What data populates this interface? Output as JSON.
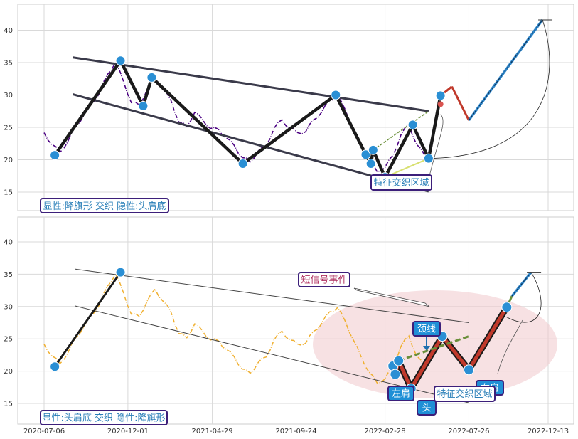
{
  "chart_data": [
    {
      "type": "line",
      "panel": "top",
      "ylim": [
        12,
        44
      ],
      "yticks": [
        15,
        20,
        25,
        30,
        35,
        40
      ],
      "grid": true,
      "price_color": "#4b0082",
      "series": [
        {
          "x": [
            "2020-07-06",
            "2020-07-20",
            "2020-08-03",
            "2020-08-17",
            "2020-08-31",
            "2020-09-14",
            "2020-09-28",
            "2020-10-12",
            "2020-10-26",
            "2020-11-09",
            "2020-11-23",
            "2020-12-07",
            "2020-12-21",
            "2021-01-04",
            "2021-01-18",
            "2021-02-01",
            "2021-02-15",
            "2021-03-01",
            "2021-03-15",
            "2021-03-29",
            "2021-04-12",
            "2021-04-26",
            "2021-05-10",
            "2021-05-24",
            "2021-06-07",
            "2021-06-21",
            "2021-07-05",
            "2021-07-19",
            "2021-08-02",
            "2021-08-16",
            "2021-08-30",
            "2021-09-13",
            "2021-09-27",
            "2021-10-11",
            "2021-10-25",
            "2021-11-08",
            "2021-11-22",
            "2021-12-06",
            "2021-12-20",
            "2022-01-03",
            "2022-01-17",
            "2022-01-31",
            "2022-02-14",
            "2022-02-28",
            "2022-03-14",
            "2022-03-28",
            "2022-04-11",
            "2022-04-25",
            "2022-05-09"
          ],
          "values": [
            24,
            22.5,
            21,
            23,
            25,
            27,
            28.5,
            30.5,
            33,
            35.2,
            32,
            29,
            28.3,
            31,
            32.5,
            31,
            29,
            26,
            25,
            27.5,
            26,
            25,
            24.5,
            23.5,
            22,
            20.5,
            19.5,
            21.5,
            22,
            25,
            26,
            25,
            24,
            24.5,
            26,
            27.5,
            29,
            30,
            27.5,
            25,
            22,
            20,
            18,
            19,
            20.5,
            24,
            25.3,
            22.5,
            20.5
          ]
        }
      ],
      "zigzag": [
        {
          "x": "2020-07-25",
          "y": 20.7
        },
        {
          "x": "2020-11-18",
          "y": 35.3
        },
        {
          "x": "2020-12-28",
          "y": 28.3
        },
        {
          "x": "2021-01-12",
          "y": 32.7
        },
        {
          "x": "2021-06-22",
          "y": 19.4
        },
        {
          "x": "2021-12-03",
          "y": 30.0
        },
        {
          "x": "2022-01-25",
          "y": 20.8
        },
        {
          "x": "2022-02-03",
          "y": 19.4
        },
        {
          "x": "2022-02-07",
          "y": 21.5
        },
        {
          "x": "2022-02-28",
          "y": 17.3
        },
        {
          "x": "2022-04-18",
          "y": 25.4
        },
        {
          "x": "2022-05-16",
          "y": 20.2
        },
        {
          "x": "2022-06-06",
          "y": 29.9
        }
      ],
      "projection": [
        {
          "x": "2022-06-06",
          "y": 29.9
        },
        {
          "x": "2022-06-26",
          "y": 31.3
        },
        {
          "x": "2022-07-26",
          "y": 26.1
        },
        {
          "x": "2022-12-03",
          "y": 41.6
        }
      ],
      "channel_lines": [
        {
          "from": {
            "x": "2020-08-26",
            "y": 35.8
          },
          "to": {
            "x": "2022-05-16",
            "y": 27.5
          }
        },
        {
          "from": {
            "x": "2020-08-26",
            "y": 30.1
          },
          "to": {
            "x": "2022-05-16",
            "y": 15.1
          }
        }
      ],
      "annotation_box": "特征交织区域",
      "pattern_label": "显性:降旗形 交织 隐性:头肩底"
    },
    {
      "type": "line",
      "panel": "bottom",
      "ylim": [
        12,
        44
      ],
      "yticks": [
        15,
        20,
        25,
        30,
        35,
        40
      ],
      "grid": true,
      "price_color": "#f0b030",
      "x_tick_labels": [
        "2020-07-06",
        "2020-12-01",
        "2021-04-29",
        "2021-09-24",
        "2022-02-28",
        "2022-07-26",
        "2022-12-13"
      ],
      "zigzag": [
        {
          "x": "2020-07-25",
          "y": 20.7
        },
        {
          "x": "2020-11-18",
          "y": 35.3
        }
      ],
      "hs_points": [
        {
          "x": "2022-03-14",
          "y": 20.8
        },
        {
          "x": "2022-03-18",
          "y": 19.5
        },
        {
          "x": "2022-03-24",
          "y": 21.6
        },
        {
          "x": "2022-04-15",
          "y": 17.3
        },
        {
          "x": "2022-06-09",
          "y": 25.4
        },
        {
          "x": "2022-07-26",
          "y": 20.2
        },
        {
          "x": "2022-10-01",
          "y": 29.9
        }
      ],
      "neckline": [
        {
          "x": "2022-03-24",
          "y": 21.6
        },
        {
          "x": "2022-07-26",
          "y": 25.4
        }
      ],
      "projection": [
        {
          "x": "2022-10-01",
          "y": 29.9
        },
        {
          "x": "2022-10-10",
          "y": 31.6
        },
        {
          "x": "2022-11-13",
          "y": 35.3
        }
      ],
      "channel_lines": [
        {
          "from": {
            "x": "2020-10-06",
            "y": 35.8
          },
          "to": {
            "x": "2022-07-26",
            "y": 27.5
          }
        },
        {
          "from": {
            "x": "2020-10-06",
            "y": 30.1
          },
          "to": {
            "x": "2022-07-26",
            "y": 15.1
          }
        }
      ],
      "labels": {
        "short_signal": "短信号事件",
        "neckline": "颈线",
        "left_shoulder": "左肩",
        "head": "头",
        "right_shoulder": "右肩",
        "feature_zone": "特征交织区域"
      },
      "pattern_label": "显性:头肩底 交织 隐性:降旗形"
    }
  ]
}
